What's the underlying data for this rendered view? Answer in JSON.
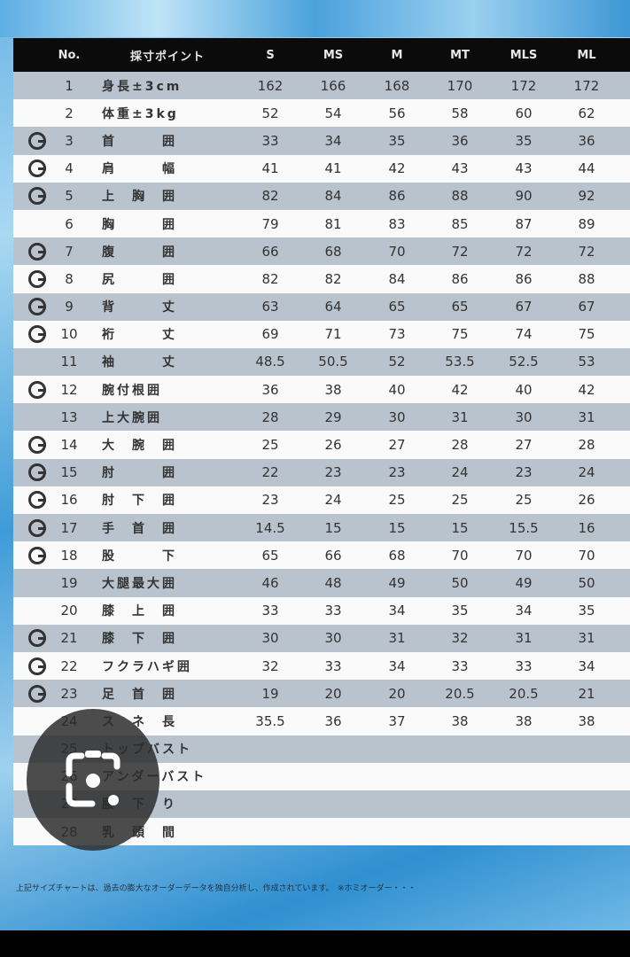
{
  "header": {
    "no": "No.",
    "point": "採寸ポイント",
    "sizes": [
      "S",
      "MS",
      "M",
      "MT",
      "MLS",
      "ML"
    ]
  },
  "rows": [
    {
      "g": false,
      "no": "1",
      "label": "身長±3cm",
      "v": [
        "162",
        "166",
        "168",
        "170",
        "172",
        "172"
      ]
    },
    {
      "g": false,
      "no": "2",
      "label": "体重±3kg",
      "v": [
        "52",
        "54",
        "56",
        "58",
        "60",
        "62"
      ]
    },
    {
      "g": true,
      "no": "3",
      "label": "首　　　囲",
      "v": [
        "33",
        "34",
        "35",
        "36",
        "35",
        "36"
      ]
    },
    {
      "g": true,
      "no": "4",
      "label": "肩　　　幅",
      "v": [
        "41",
        "41",
        "42",
        "43",
        "43",
        "44"
      ]
    },
    {
      "g": true,
      "no": "5",
      "label": "上　胸　囲",
      "v": [
        "82",
        "84",
        "86",
        "88",
        "90",
        "92"
      ]
    },
    {
      "g": false,
      "no": "6",
      "label": "胸　　　囲",
      "v": [
        "79",
        "81",
        "83",
        "85",
        "87",
        "89"
      ]
    },
    {
      "g": true,
      "no": "7",
      "label": "腹　　　囲",
      "v": [
        "66",
        "68",
        "70",
        "72",
        "72",
        "72"
      ]
    },
    {
      "g": true,
      "no": "8",
      "label": "尻　　　囲",
      "v": [
        "82",
        "82",
        "84",
        "86",
        "86",
        "88"
      ]
    },
    {
      "g": true,
      "no": "9",
      "label": "背　　　丈",
      "v": [
        "63",
        "64",
        "65",
        "65",
        "67",
        "67"
      ]
    },
    {
      "g": true,
      "no": "10",
      "label": "裄　　　丈",
      "v": [
        "69",
        "71",
        "73",
        "75",
        "74",
        "75"
      ]
    },
    {
      "g": false,
      "no": "11",
      "label": "袖　　　丈",
      "v": [
        "48.5",
        "50.5",
        "52",
        "53.5",
        "52.5",
        "53"
      ]
    },
    {
      "g": true,
      "no": "12",
      "label": "腕付根囲",
      "v": [
        "36",
        "38",
        "40",
        "42",
        "40",
        "42"
      ]
    },
    {
      "g": false,
      "no": "13",
      "label": "上大腕囲",
      "v": [
        "28",
        "29",
        "30",
        "31",
        "30",
        "31"
      ]
    },
    {
      "g": true,
      "no": "14",
      "label": "大　腕　囲",
      "v": [
        "25",
        "26",
        "27",
        "28",
        "27",
        "28"
      ]
    },
    {
      "g": true,
      "no": "15",
      "label": "肘　　　囲",
      "v": [
        "22",
        "23",
        "23",
        "24",
        "23",
        "24"
      ]
    },
    {
      "g": true,
      "no": "16",
      "label": "肘　下　囲",
      "v": [
        "23",
        "24",
        "25",
        "25",
        "25",
        "26"
      ]
    },
    {
      "g": true,
      "no": "17",
      "label": "手　首　囲",
      "v": [
        "14.5",
        "15",
        "15",
        "15",
        "15.5",
        "16"
      ]
    },
    {
      "g": true,
      "no": "18",
      "label": "股　　　下",
      "v": [
        "65",
        "66",
        "68",
        "70",
        "70",
        "70"
      ]
    },
    {
      "g": false,
      "no": "19",
      "label": "大腿最大囲",
      "v": [
        "46",
        "48",
        "49",
        "50",
        "49",
        "50"
      ]
    },
    {
      "g": false,
      "no": "20",
      "label": "膝　上　囲",
      "v": [
        "33",
        "33",
        "34",
        "35",
        "34",
        "35"
      ]
    },
    {
      "g": true,
      "no": "21",
      "label": "膝　下　囲",
      "v": [
        "30",
        "30",
        "31",
        "32",
        "31",
        "31"
      ]
    },
    {
      "g": true,
      "no": "22",
      "label": "フクラハギ囲",
      "v": [
        "32",
        "33",
        "34",
        "33",
        "33",
        "34"
      ]
    },
    {
      "g": true,
      "no": "23",
      "label": "足　首　囲",
      "v": [
        "19",
        "20",
        "20",
        "20.5",
        "20.5",
        "21"
      ]
    },
    {
      "g": false,
      "no": "24",
      "label": "ス　ネ　長",
      "v": [
        "35.5",
        "36",
        "37",
        "38",
        "38",
        "38"
      ]
    },
    {
      "g": false,
      "no": "25",
      "label": "トップバスト",
      "v": [
        "",
        "",
        "",
        "",
        "",
        ""
      ]
    },
    {
      "g": false,
      "no": "26",
      "label": "アンダーバスト",
      "v": [
        "",
        "",
        "",
        "",
        "",
        ""
      ]
    },
    {
      "g": false,
      "no": "27",
      "label": "腰　下　り",
      "v": [
        "",
        "",
        "",
        "",
        "",
        ""
      ]
    },
    {
      "g": false,
      "no": "28",
      "label": "乳　頭　間",
      "v": [
        "",
        "",
        "",
        "",
        "",
        ""
      ]
    }
  ],
  "footer": "上記サイズチャートは、過去の膨大なオーダーデータを独自分析し、作成されています。　※ホミオーダー・・・",
  "lens": {
    "icon": "google-lens-icon"
  }
}
